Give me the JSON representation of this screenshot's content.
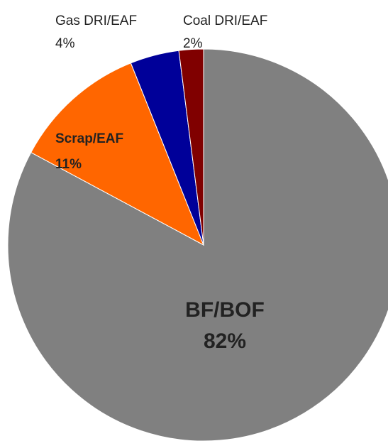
{
  "chart_data": {
    "type": "pie",
    "categories": [
      "BF/BOF",
      "Scrap/EAF",
      "Gas DRI/EAF",
      "Coal DRI/EAF"
    ],
    "values": [
      82,
      11,
      4,
      2
    ],
    "value_labels": [
      "82%",
      "11%",
      "4%",
      "2%"
    ],
    "colors": [
      "#808080",
      "#ff6600",
      "#000099",
      "#800000"
    ]
  }
}
